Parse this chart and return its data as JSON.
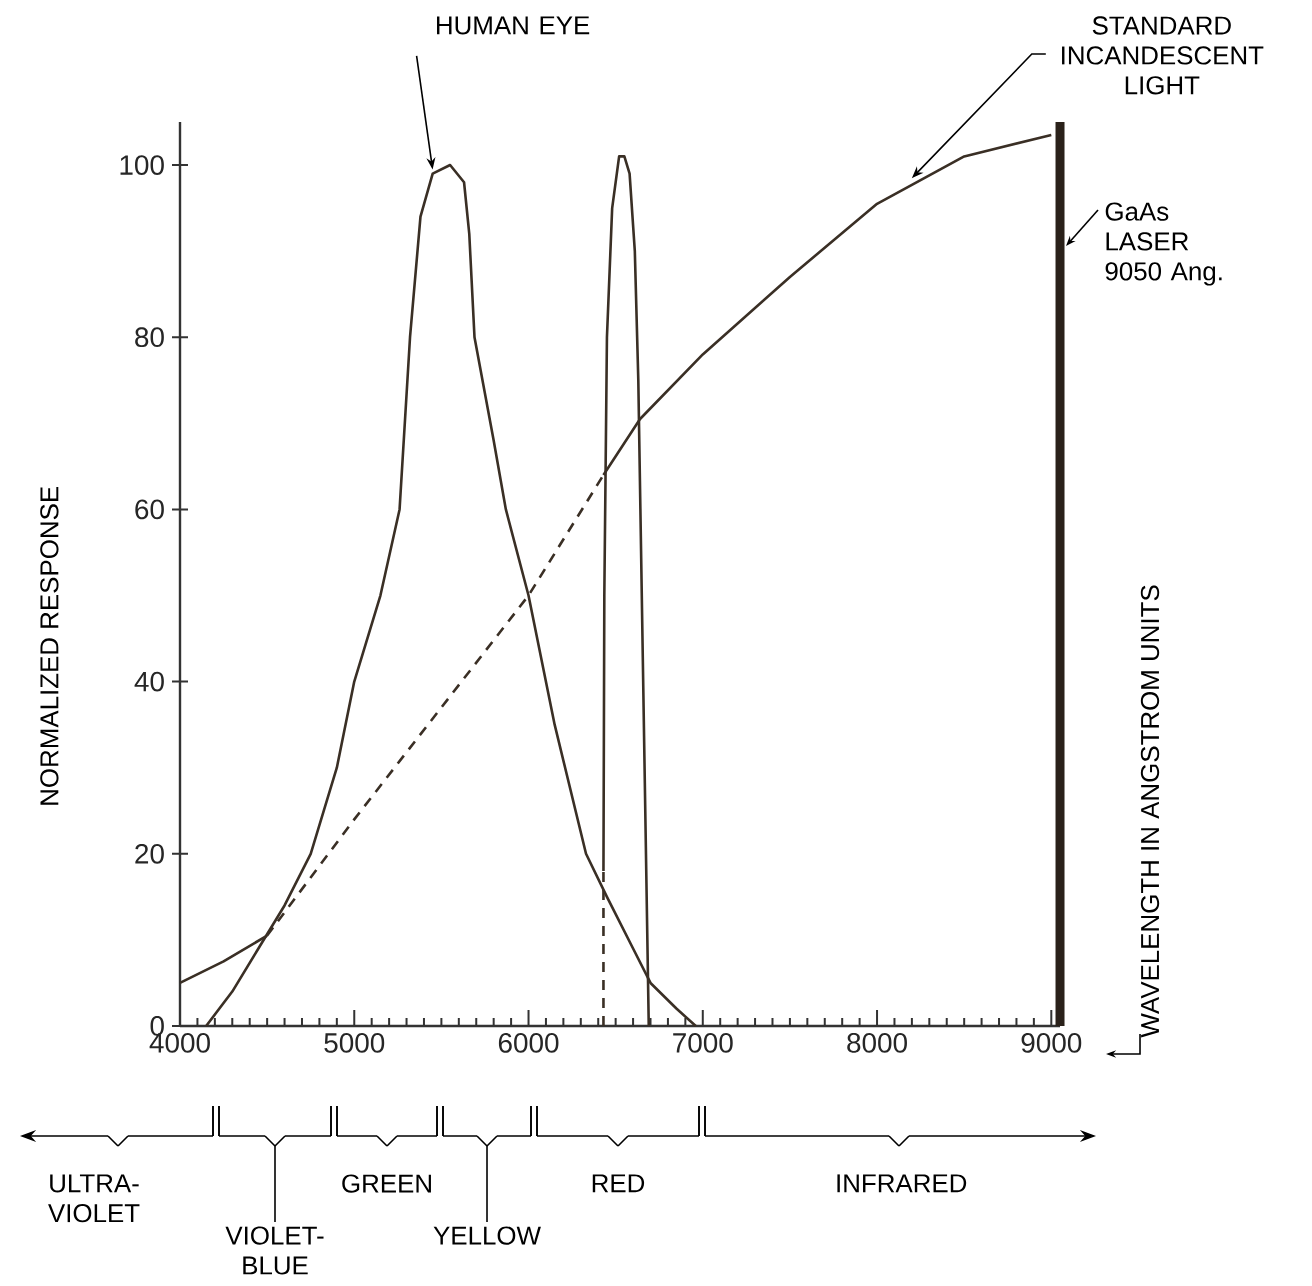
{
  "chart_data": {
    "type": "line",
    "ylabel": "NORMALIZED RESPONSE",
    "xlim": [
      4000,
      9050
    ],
    "ylim": [
      0,
      105
    ],
    "xticks": [
      4000,
      5000,
      6000,
      7000,
      8000,
      9000
    ],
    "yticks": [
      0,
      20,
      40,
      60,
      80,
      100
    ],
    "series": [
      {
        "color": "#3a2f25",
        "line_style": "solid",
        "x": [
          4150,
          4300,
          4450,
          4600,
          4750,
          4900,
          5000,
          5150,
          5260,
          5320,
          5380,
          5450,
          5550,
          5630,
          5660,
          5690,
          5800,
          5870,
          6000,
          6150,
          6330,
          6450,
          6600,
          6700,
          6850,
          6960
        ],
        "values": [
          0,
          4,
          9,
          14,
          20,
          30,
          40,
          50,
          60,
          80,
          94,
          99,
          100,
          98,
          92,
          80,
          68,
          60,
          50,
          35,
          20,
          15,
          9,
          5,
          2,
          0
        ]
      },
      {
        "color": "#3a2f25",
        "line_style": "solid",
        "x": [
          4000,
          4250,
          4500
        ],
        "values": [
          5,
          7.5,
          10.5
        ]
      },
      {
        "color": "#3a2f25",
        "line_style": "dashed",
        "x": [
          4500,
          5000,
          5500,
          6000,
          6430
        ],
        "values": [
          10.5,
          24,
          37,
          50,
          64
        ]
      },
      {
        "color": "#3a2f25",
        "line_style": "solid",
        "x": [
          6430,
          6640,
          7000,
          7500,
          8000,
          8500,
          9000
        ],
        "values": [
          64,
          70.5,
          78,
          87,
          95.5,
          101,
          103.5
        ]
      },
      {
        "color": "#3a2f25",
        "line_style": "dashed",
        "x": [
          6430,
          6430
        ],
        "values": [
          0,
          18
        ]
      },
      {
        "color": "#3a2f25",
        "line_style": "solid",
        "x": [
          6430,
          6435,
          6450,
          6480,
          6520,
          6550,
          6580,
          6610,
          6630,
          6650,
          6670,
          6690
        ],
        "values": [
          18,
          50,
          80,
          95,
          101,
          101,
          99,
          90,
          75,
          50,
          25,
          0
        ]
      }
    ],
    "ref_lines": [
      {
        "axis": "x",
        "value": 9050,
        "label": "GaAs LASER 9050 Ang.",
        "color": "#2a211a"
      }
    ],
    "annotations": [
      {
        "text": "HUMAN EYE",
        "x": 5450,
        "y": 99
      },
      {
        "text": "STANDARD INCANDESCENT LIGHT",
        "x": 8200,
        "y": 98
      },
      "WAVELENGTH IN ANGSTROM UNITS",
      "ULTRA-VIOLET",
      "VIOLET-BLUE",
      "GREEN",
      "YELLOW",
      "RED",
      "INFRARED"
    ]
  }
}
